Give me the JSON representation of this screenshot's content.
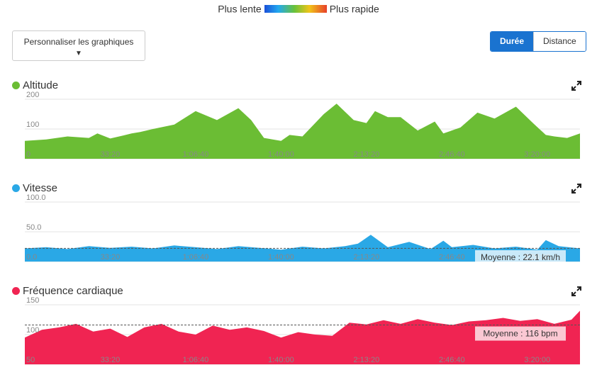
{
  "legend": {
    "slow": "Plus lente",
    "fast": "Plus rapide"
  },
  "customize_button": {
    "label": "Personnaliser les graphiques",
    "caret": "▼"
  },
  "toggle": {
    "duration": "Durée",
    "distance": "Distance",
    "selected": "Durée"
  },
  "chart_data": [
    {
      "type": "area",
      "title": "Altitude",
      "color": "#6bbd34",
      "ylim": [
        0,
        200
      ],
      "yticks": [
        "200",
        "100",
        "0"
      ],
      "ytick_values": [
        200,
        100,
        0
      ],
      "xticks": [
        "33:20",
        "1:06:40",
        "1:40:00",
        "2:13:20",
        "2:46:40",
        "3:20:00"
      ],
      "xtick_values": [
        2000,
        4000,
        6000,
        8000,
        10000,
        12000
      ],
      "x": [
        0,
        500,
        1000,
        1500,
        1700,
        2000,
        2300,
        2500,
        2700,
        3000,
        3500,
        4000,
        4500,
        5000,
        5300,
        5600,
        6000,
        6200,
        6500,
        7000,
        7300,
        7700,
        8000,
        8200,
        8500,
        8800,
        9200,
        9600,
        9800,
        10200,
        10600,
        11000,
        11500,
        11900,
        12200,
        12400,
        12700,
        13000
      ],
      "values": [
        60,
        65,
        75,
        70,
        85,
        68,
        78,
        85,
        90,
        100,
        115,
        160,
        130,
        170,
        130,
        70,
        60,
        80,
        75,
        150,
        185,
        130,
        120,
        160,
        140,
        140,
        95,
        125,
        85,
        105,
        155,
        135,
        175,
        120,
        80,
        75,
        70,
        85
      ]
    },
    {
      "type": "area",
      "title": "Vitesse",
      "color": "#2aa8e6",
      "ylim": [
        0,
        100
      ],
      "yticks": [
        "100.0",
        "50.0",
        "0.0"
      ],
      "ytick_values": [
        100,
        50,
        0
      ],
      "xticks": [
        "33:20",
        "1:06:40",
        "1:40:00",
        "2:13:20",
        "2:46:40",
        "3:20:00"
      ],
      "xtick_values": [
        2000,
        4000,
        6000,
        8000,
        10000,
        12000
      ],
      "x": [
        0,
        500,
        1000,
        1500,
        2000,
        2500,
        3000,
        3500,
        4000,
        4500,
        5000,
        5500,
        6000,
        6500,
        7000,
        7500,
        7800,
        8100,
        8500,
        9000,
        9500,
        9800,
        10000,
        10500,
        11000,
        11500,
        12000,
        12200,
        12500,
        13000
      ],
      "values": [
        22,
        24,
        21,
        26,
        23,
        25,
        22,
        27,
        24,
        21,
        26,
        23,
        20,
        25,
        22,
        26,
        30,
        45,
        24,
        33,
        21,
        35,
        24,
        28,
        22,
        25,
        20,
        36,
        26,
        22
      ],
      "average": 22.1,
      "average_label": "Moyenne : 22.1 km/h"
    },
    {
      "type": "area",
      "title": "Fréquence cardiaque",
      "color": "#f02452",
      "ylim": [
        50,
        150
      ],
      "yticks": [
        "150",
        "100",
        "50"
      ],
      "ytick_values": [
        150,
        100,
        50
      ],
      "xticks": [
        "33:20",
        "1:06:40",
        "1:40:00",
        "2:13:20",
        "2:46:40",
        "3:20:00"
      ],
      "xtick_values": [
        2000,
        4000,
        6000,
        8000,
        10000,
        12000
      ],
      "x": [
        0,
        400,
        800,
        1200,
        1600,
        2000,
        2400,
        2800,
        3200,
        3600,
        4000,
        4400,
        4800,
        5200,
        5600,
        6000,
        6400,
        6800,
        7200,
        7600,
        8000,
        8400,
        8800,
        9200,
        9600,
        10000,
        10400,
        10800,
        11200,
        11600,
        12000,
        12400,
        12800,
        13000
      ],
      "values": [
        95,
        108,
        112,
        118,
        105,
        110,
        96,
        112,
        118,
        105,
        100,
        115,
        108,
        112,
        106,
        95,
        104,
        100,
        98,
        120,
        117,
        124,
        118,
        126,
        120,
        116,
        122,
        124,
        128,
        123,
        126,
        118,
        125,
        140
      ],
      "average": 116,
      "average_label": "Moyenne : 116 bpm"
    }
  ]
}
